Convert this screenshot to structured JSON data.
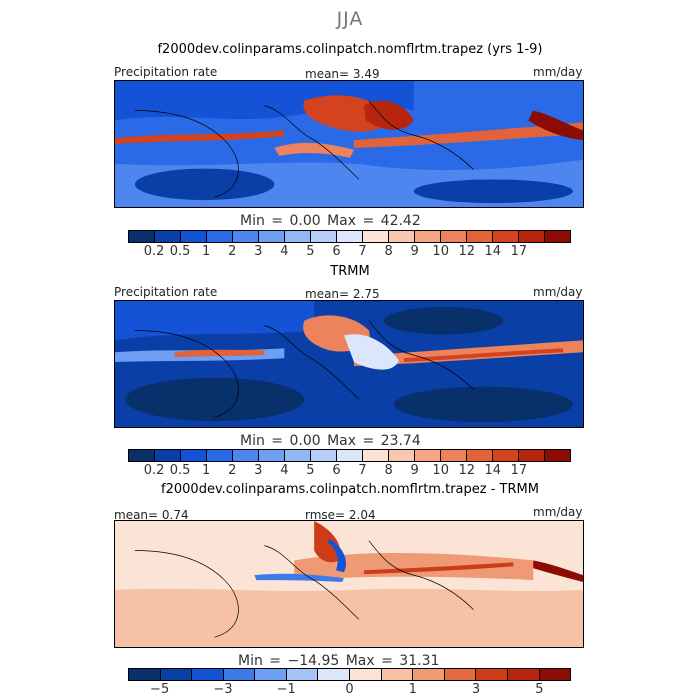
{
  "title": "JJA",
  "panels": [
    {
      "title": "f2000dev.colinparams.colinpatch.nomflrtm.trapez (yrs 1-9)",
      "left_label": "Precipitation rate",
      "center_label": "mean=    3.49",
      "right_label": "mm/day",
      "minmax": "Min =    0.00 Max =  42.42",
      "colorbar_ticks": [
        "0.2",
        "0.5",
        "1",
        "2",
        "3",
        "4",
        "5",
        "6",
        "7",
        "8",
        "9",
        "10",
        "12",
        "14",
        "17"
      ]
    },
    {
      "title": "TRMM",
      "left_label": "Precipitation rate",
      "center_label": "mean=    2.75",
      "right_label": "mm/day",
      "minmax": "Min =    0.00 Max =  23.74",
      "colorbar_ticks": [
        "0.2",
        "0.5",
        "1",
        "2",
        "3",
        "4",
        "5",
        "6",
        "7",
        "8",
        "9",
        "10",
        "12",
        "14",
        "17"
      ]
    },
    {
      "title": "f2000dev.colinparams.colinpatch.nomflrtm.trapez - TRMM",
      "left_label": "mean=   0.74",
      "center_label": "rmse=    2.04",
      "right_label": "mm/day",
      "minmax": "Min = −14.95 Max =  31.31",
      "colorbar_ticks": [
        "−5",
        "−3",
        "−1",
        "0",
        "1",
        "3",
        "5"
      ]
    }
  ],
  "colors": {
    "precip_scale": [
      "#08306b",
      "#0b3fa8",
      "#1553d6",
      "#2b6ae6",
      "#4d86ee",
      "#6f9ff2",
      "#92b7f5",
      "#b7cff8",
      "#dbe6fb",
      "#fbe3d6",
      "#f8c7b0",
      "#f3a584",
      "#ec835d",
      "#e2623a",
      "#d4431f",
      "#b8250f",
      "#8c0c04"
    ],
    "diff_scale": [
      "#08306b",
      "#0b3fa8",
      "#1553d6",
      "#3f7ae9",
      "#6f9ff2",
      "#a3c2f6",
      "#dbe6fb",
      "#fbe3d6",
      "#f6c2a6",
      "#ef9a74",
      "#e4693f",
      "#cc3c18",
      "#b8250f",
      "#8c0c04"
    ]
  }
}
